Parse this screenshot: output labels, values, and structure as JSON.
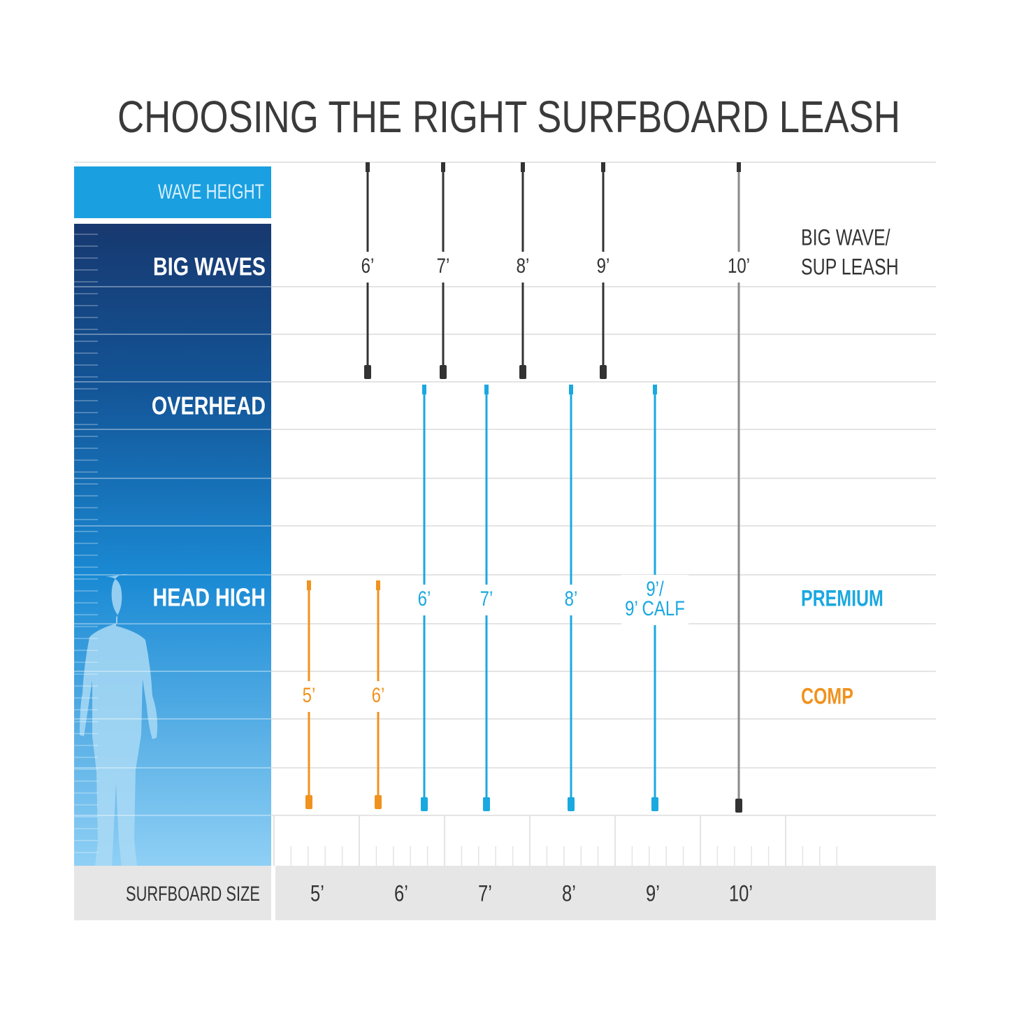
{
  "title": "CHOOSING THE RIGHT SURFBOARD LEASH",
  "wave_height": {
    "header": "WAVE HEIGHT",
    "levels": [
      "BIG WAVES",
      "OVERHEAD",
      "HEAD HIGH"
    ]
  },
  "leash_groups": [
    {
      "name_lines": [
        "BIG WAVE/",
        "SUP LEASH"
      ],
      "color": "#333333",
      "leashes": [
        {
          "label_lines": [
            "6’"
          ]
        },
        {
          "label_lines": [
            "7’"
          ]
        },
        {
          "label_lines": [
            "8’"
          ]
        },
        {
          "label_lines": [
            "9’"
          ]
        },
        {
          "label_lines": [
            "10’"
          ]
        }
      ]
    },
    {
      "name_lines": [
        "PREMIUM"
      ],
      "color": "#1aa8e0",
      "leashes": [
        {
          "label_lines": [
            "6’"
          ]
        },
        {
          "label_lines": [
            "7’"
          ]
        },
        {
          "label_lines": [
            "8’"
          ]
        },
        {
          "label_lines": [
            "9’/",
            "9’ CALF"
          ]
        }
      ]
    },
    {
      "name_lines": [
        "COMP"
      ],
      "color": "#f0921e",
      "leashes": [
        {
          "label_lines": [
            "5’"
          ]
        },
        {
          "label_lines": [
            "6’"
          ]
        }
      ]
    }
  ],
  "surfboard_size": {
    "label": "SURFBOARD SIZE",
    "sizes": [
      "5’",
      "6’",
      "7’",
      "8’",
      "9’",
      "10’"
    ]
  }
}
